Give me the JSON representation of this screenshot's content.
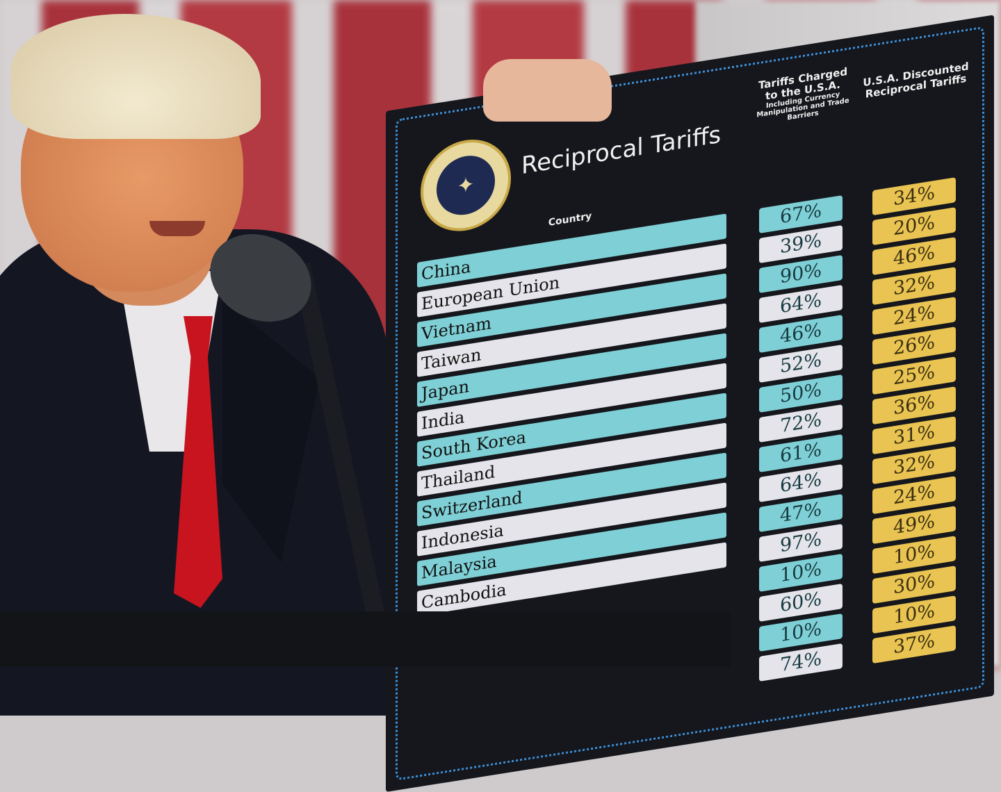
{
  "board": {
    "title": "Reciprocal Tariffs",
    "seal_text": "SEAL OF THE PRESIDENT OF THE UNITED STATES",
    "country_header": "Country",
    "charged_header": "Tariffs Charged to the U.S.A.",
    "charged_subheader": "Including Currency Manipulation and Trade Barriers",
    "discount_header": "U.S.A. Discounted Reciprocal Tariffs",
    "colors": {
      "board": "#15171c",
      "teal": "#7fd0d6",
      "white": "#e4e4ea",
      "gold": "#e9c452",
      "border_dots": "#3d8fd8"
    },
    "rows": [
      {
        "country": "China",
        "charged": "67%",
        "discounted": "34%"
      },
      {
        "country": "European Union",
        "charged": "39%",
        "discounted": "20%"
      },
      {
        "country": "Vietnam",
        "charged": "90%",
        "discounted": "46%"
      },
      {
        "country": "Taiwan",
        "charged": "64%",
        "discounted": "32%"
      },
      {
        "country": "Japan",
        "charged": "46%",
        "discounted": "24%"
      },
      {
        "country": "India",
        "charged": "52%",
        "discounted": "26%"
      },
      {
        "country": "South Korea",
        "charged": "50%",
        "discounted": "25%"
      },
      {
        "country": "Thailand",
        "charged": "72%",
        "discounted": "36%"
      },
      {
        "country": "Switzerland",
        "charged": "61%",
        "discounted": "31%"
      },
      {
        "country": "Indonesia",
        "charged": "64%",
        "discounted": "32%"
      },
      {
        "country": "Malaysia",
        "charged": "47%",
        "discounted": "24%"
      },
      {
        "country": "Cambodia",
        "charged": "97%",
        "discounted": "49%"
      },
      {
        "country": "",
        "charged": "10%",
        "discounted": "10%"
      },
      {
        "country": "",
        "charged": "60%",
        "discounted": "30%"
      },
      {
        "country": "",
        "charged": "10%",
        "discounted": "10%"
      },
      {
        "country": "",
        "charged": "74%",
        "discounted": "37%"
      }
    ]
  }
}
